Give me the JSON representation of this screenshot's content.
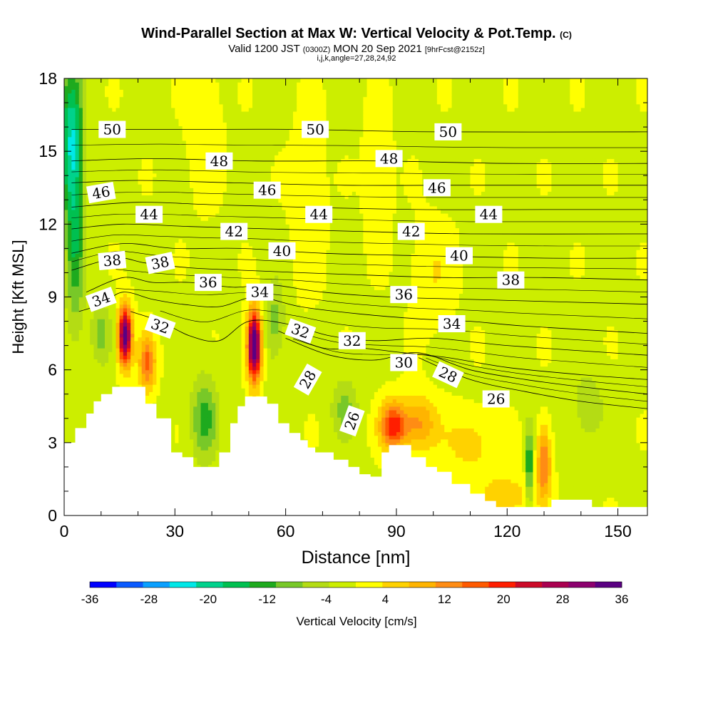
{
  "chart_data": {
    "type": "heatmap",
    "title_main": "Wind-Parallel Section at Max W: Vertical Velocity & Pot.Temp.",
    "title_copyright": "(C)",
    "subtitle_a": "Valid 1200 JST",
    "subtitle_b": "(0300Z)",
    "subtitle_c": "MON 20 Sep 2021",
    "subtitle_d": "[9hrFcst@2152z]",
    "subtitle_line2": "i,j,k,angle=27,28,24,92",
    "xlabel": "Distance [nm]",
    "ylabel": "Height [Kft MSL]",
    "xlim": [
      0,
      158
    ],
    "ylim": [
      0,
      18
    ],
    "x_ticks": [
      0,
      30,
      60,
      90,
      120,
      150
    ],
    "y_ticks": [
      0,
      3,
      6,
      9,
      12,
      15,
      18
    ],
    "colorbar": {
      "label": "Vertical Velocity [cm/s]",
      "ticks": [
        -36,
        -28,
        -20,
        -12,
        -4,
        4,
        12,
        20,
        28,
        36
      ],
      "colors": [
        "#0000ff",
        "#0a5aff",
        "#0aa0ff",
        "#00e8e8",
        "#00d28c",
        "#00c050",
        "#1eaa1e",
        "#78c828",
        "#b4dc14",
        "#ccee00",
        "#ffff00",
        "#ffd200",
        "#ffb400",
        "#ff8c14",
        "#ff5a00",
        "#ff1e00",
        "#cc0a28",
        "#aa0050",
        "#8c006e",
        "#5a0082"
      ]
    },
    "terrain": [
      [
        0,
        3
      ],
      [
        3,
        3
      ],
      [
        3,
        3.6
      ],
      [
        6,
        3.6
      ],
      [
        6,
        4.2
      ],
      [
        8,
        4.2
      ],
      [
        8,
        4.7
      ],
      [
        10,
        4.7
      ],
      [
        10,
        5.0
      ],
      [
        13,
        5.0
      ],
      [
        13,
        5.3
      ],
      [
        22,
        5.3
      ],
      [
        22,
        4.6
      ],
      [
        25,
        4.6
      ],
      [
        25,
        4.0
      ],
      [
        29,
        4.0
      ],
      [
        29,
        2.6
      ],
      [
        32,
        2.6
      ],
      [
        32,
        2.4
      ],
      [
        35,
        2.4
      ],
      [
        35,
        2.0
      ],
      [
        42,
        2.0
      ],
      [
        42,
        2.6
      ],
      [
        45,
        2.6
      ],
      [
        45,
        3.8
      ],
      [
        47,
        3.8
      ],
      [
        47,
        4.5
      ],
      [
        49,
        4.5
      ],
      [
        49,
        4.9
      ],
      [
        55,
        4.9
      ],
      [
        55,
        4.6
      ],
      [
        58,
        4.6
      ],
      [
        58,
        3.8
      ],
      [
        61,
        3.8
      ],
      [
        61,
        3.4
      ],
      [
        64,
        3.4
      ],
      [
        64,
        3.1
      ],
      [
        66,
        3.1
      ],
      [
        66,
        2.8
      ],
      [
        68,
        2.8
      ],
      [
        68,
        2.6
      ],
      [
        73,
        2.6
      ],
      [
        73,
        2.3
      ],
      [
        77,
        2.3
      ],
      [
        77,
        2.0
      ],
      [
        80,
        2.0
      ],
      [
        80,
        1.7
      ],
      [
        83,
        1.7
      ],
      [
        83,
        1.6
      ],
      [
        86,
        1.6
      ],
      [
        86,
        2.6
      ],
      [
        88,
        2.6
      ],
      [
        88,
        2.9
      ],
      [
        94,
        2.9
      ],
      [
        94,
        2.4
      ],
      [
        98,
        2.4
      ],
      [
        98,
        2.0
      ],
      [
        101,
        2.0
      ],
      [
        101,
        1.8
      ],
      [
        105,
        1.8
      ],
      [
        105,
        1.3
      ],
      [
        110,
        1.3
      ],
      [
        110,
        0.9
      ],
      [
        114,
        0.9
      ],
      [
        114,
        0.6
      ],
      [
        117,
        0.6
      ],
      [
        117,
        0.35
      ],
      [
        132,
        0.35
      ],
      [
        132,
        0.65
      ],
      [
        143,
        0.65
      ],
      [
        143,
        0.35
      ],
      [
        158,
        0.35
      ]
    ],
    "w_blobs": [
      {
        "x": 16.5,
        "y": 7.4,
        "sx": 1.3,
        "sy": 0.85,
        "w": 36
      },
      {
        "x": 22.5,
        "y": 6.3,
        "sx": 1.6,
        "sy": 0.8,
        "w": 16
      },
      {
        "x": 51.5,
        "y": 7.0,
        "sx": 1.3,
        "sy": 1.0,
        "w": 40
      },
      {
        "x": 89,
        "y": 3.7,
        "sx": 2.5,
        "sy": 0.7,
        "w": 20
      },
      {
        "x": 96,
        "y": 3.8,
        "sx": 3.5,
        "sy": 0.8,
        "w": 12
      },
      {
        "x": 130,
        "y": 2.2,
        "sx": 1.3,
        "sy": 1.0,
        "w": 16
      },
      {
        "x": 2,
        "y": 15.5,
        "sx": 2.2,
        "sy": 2.2,
        "w": -20
      },
      {
        "x": 3,
        "y": 11.0,
        "sx": 1.8,
        "sy": 2.5,
        "w": -12
      },
      {
        "x": 38,
        "y": 4.0,
        "sx": 2.5,
        "sy": 1.2,
        "w": -12
      },
      {
        "x": 126,
        "y": 2.0,
        "sx": 0.7,
        "sy": 1.2,
        "w": -16
      },
      {
        "x": 76,
        "y": 4.4,
        "sx": 2.5,
        "sy": 0.9,
        "w": -8
      },
      {
        "x": 120,
        "y": 0.8,
        "sx": 6,
        "sy": 0.8,
        "w": 6
      },
      {
        "x": 110,
        "y": 3.0,
        "sx": 5,
        "sy": 0.9,
        "w": 6
      },
      {
        "x": 66,
        "y": 13.0,
        "sx": 3,
        "sy": 2.5,
        "w": 4
      },
      {
        "x": 85,
        "y": 14.0,
        "sx": 2.5,
        "sy": 2.0,
        "w": 4
      },
      {
        "x": 38,
        "y": 16.0,
        "sx": 3,
        "sy": 2.0,
        "w": 4
      },
      {
        "x": 100,
        "y": 10.0,
        "sx": 4,
        "sy": 1.5,
        "w": 4
      },
      {
        "x": 10,
        "y": 7.5,
        "sx": 2,
        "sy": 0.9,
        "w": -8
      },
      {
        "x": 57,
        "y": 8.0,
        "sx": 2,
        "sy": 1.2,
        "w": -8
      },
      {
        "x": 142,
        "y": 4.5,
        "sx": 3,
        "sy": 1.0,
        "w": -6
      }
    ],
    "theta_contours": [
      {
        "label": "26",
        "pts": [
          [
            96,
            6.5
          ],
          [
            110,
            5.6
          ],
          [
            125,
            5.1
          ],
          [
            140,
            4.7
          ],
          [
            158,
            4.4
          ]
        ]
      },
      {
        "label": "28",
        "pts": [
          [
            60,
            7.3
          ],
          [
            72,
            6.6
          ],
          [
            84,
            6.4
          ],
          [
            96,
            6.7
          ],
          [
            110,
            6.0
          ],
          [
            125,
            5.6
          ],
          [
            140,
            5.3
          ],
          [
            158,
            5.0
          ]
        ]
      },
      {
        "label": "30",
        "pts": [
          [
            58,
            7.6
          ],
          [
            70,
            6.9
          ],
          [
            80,
            6.9
          ],
          [
            92,
            6.7
          ],
          [
            104,
            6.5
          ],
          [
            120,
            6.1
          ],
          [
            140,
            5.8
          ],
          [
            158,
            5.6
          ]
        ]
      },
      {
        "label": "32",
        "pts": [
          [
            18,
            8.4
          ],
          [
            26,
            8.0
          ],
          [
            34,
            7.4
          ],
          [
            42,
            7.2
          ],
          [
            50,
            8.0
          ],
          [
            60,
            7.9
          ],
          [
            72,
            7.4
          ],
          [
            84,
            7.2
          ],
          [
            100,
            7.3
          ],
          [
            120,
            7.0
          ],
          [
            158,
            6.6
          ]
        ]
      },
      {
        "label": "34",
        "pts": [
          [
            4,
            8.4
          ],
          [
            10,
            8.7
          ],
          [
            16,
            9.2
          ],
          [
            24,
            8.9
          ],
          [
            32,
            8.7
          ],
          [
            42,
            8.6
          ],
          [
            52,
            9.0
          ],
          [
            64,
            8.6
          ],
          [
            80,
            8.3
          ],
          [
            96,
            8.1
          ],
          [
            110,
            8.0
          ],
          [
            125,
            7.8
          ],
          [
            158,
            7.5
          ]
        ]
      },
      {
        "label": "36",
        "pts": [
          [
            6,
            9.2
          ],
          [
            16,
            9.8
          ],
          [
            24,
            9.6
          ],
          [
            34,
            9.6
          ],
          [
            46,
            9.4
          ],
          [
            56,
            9.5
          ],
          [
            70,
            9.2
          ],
          [
            88,
            9.0
          ],
          [
            110,
            8.9
          ],
          [
            158,
            8.7
          ]
        ]
      },
      {
        "label": "38",
        "pts": [
          [
            2,
            10.1
          ],
          [
            14,
            10.6
          ],
          [
            22,
            10.4
          ],
          [
            34,
            10.2
          ],
          [
            48,
            10.1
          ],
          [
            64,
            10.0
          ],
          [
            82,
            9.9
          ],
          [
            104,
            9.8
          ],
          [
            130,
            9.8
          ],
          [
            158,
            9.7
          ]
        ]
      },
      {
        "label": "40",
        "pts": [
          [
            2,
            10.8
          ],
          [
            16,
            11.2
          ],
          [
            30,
            11.0
          ],
          [
            48,
            11.0
          ],
          [
            70,
            10.8
          ],
          [
            96,
            10.7
          ],
          [
            130,
            10.6
          ],
          [
            158,
            10.6
          ]
        ]
      },
      {
        "label": "42",
        "pts": [
          [
            2,
            11.8
          ],
          [
            16,
            12.0
          ],
          [
            34,
            11.9
          ],
          [
            56,
            11.8
          ],
          [
            80,
            11.7
          ],
          [
            110,
            11.6
          ],
          [
            158,
            11.6
          ]
        ]
      },
      {
        "label": "44",
        "pts": [
          [
            2,
            12.7
          ],
          [
            20,
            12.9
          ],
          [
            40,
            12.8
          ],
          [
            64,
            12.7
          ],
          [
            96,
            12.6
          ],
          [
            130,
            12.6
          ],
          [
            158,
            12.6
          ]
        ]
      },
      {
        "label": "46",
        "pts": [
          [
            2,
            13.7
          ],
          [
            20,
            13.8
          ],
          [
            46,
            13.7
          ],
          [
            76,
            13.6
          ],
          [
            110,
            13.6
          ],
          [
            158,
            13.6
          ]
        ]
      },
      {
        "label": "48",
        "pts": [
          [
            2,
            14.6
          ],
          [
            24,
            14.7
          ],
          [
            52,
            14.6
          ],
          [
            86,
            14.6
          ],
          [
            120,
            14.5
          ],
          [
            158,
            14.5
          ]
        ]
      },
      {
        "label": "50",
        "pts": [
          [
            2,
            15.9
          ],
          [
            30,
            15.9
          ],
          [
            64,
            15.9
          ],
          [
            100,
            15.8
          ],
          [
            158,
            15.8
          ]
        ]
      }
    ],
    "contour_labels": [
      {
        "text": "50",
        "x": 13,
        "y": 15.9,
        "rot": 0
      },
      {
        "text": "50",
        "x": 68,
        "y": 15.9,
        "rot": 0
      },
      {
        "text": "50",
        "x": 104,
        "y": 15.8,
        "rot": 0
      },
      {
        "text": "48",
        "x": 42,
        "y": 14.6,
        "rot": 0
      },
      {
        "text": "48",
        "x": 88,
        "y": 14.7,
        "rot": 0
      },
      {
        "text": "46",
        "x": 10,
        "y": 13.3,
        "rot": -10
      },
      {
        "text": "46",
        "x": 55,
        "y": 13.4,
        "rot": 0
      },
      {
        "text": "46",
        "x": 101,
        "y": 13.5,
        "rot": 0
      },
      {
        "text": "44",
        "x": 23,
        "y": 12.4,
        "rot": 0
      },
      {
        "text": "44",
        "x": 69,
        "y": 12.4,
        "rot": 0
      },
      {
        "text": "44",
        "x": 115,
        "y": 12.4,
        "rot": 0
      },
      {
        "text": "42",
        "x": 46,
        "y": 11.7,
        "rot": 0
      },
      {
        "text": "42",
        "x": 94,
        "y": 11.7,
        "rot": 0
      },
      {
        "text": "40",
        "x": 59,
        "y": 10.9,
        "rot": 0
      },
      {
        "text": "40",
        "x": 107,
        "y": 10.7,
        "rot": 0
      },
      {
        "text": "38",
        "x": 13,
        "y": 10.5,
        "rot": -5
      },
      {
        "text": "38",
        "x": 26,
        "y": 10.4,
        "rot": -12
      },
      {
        "text": "38",
        "x": 121,
        "y": 9.7,
        "rot": 0
      },
      {
        "text": "36",
        "x": 39,
        "y": 9.6,
        "rot": 0
      },
      {
        "text": "36",
        "x": 92,
        "y": 9.1,
        "rot": 0
      },
      {
        "text": "34",
        "x": 10,
        "y": 8.9,
        "rot": -20
      },
      {
        "text": "34",
        "x": 53,
        "y": 9.2,
        "rot": 0
      },
      {
        "text": "34",
        "x": 105,
        "y": 7.9,
        "rot": 0
      },
      {
        "text": "32",
        "x": 26,
        "y": 7.8,
        "rot": 20
      },
      {
        "text": "32",
        "x": 64,
        "y": 7.6,
        "rot": 20
      },
      {
        "text": "32",
        "x": 78,
        "y": 7.2,
        "rot": 0
      },
      {
        "text": "30",
        "x": 92,
        "y": 6.3,
        "rot": 0
      },
      {
        "text": "28",
        "x": 66,
        "y": 5.6,
        "rot": -60
      },
      {
        "text": "28",
        "x": 104,
        "y": 5.8,
        "rot": 25
      },
      {
        "text": "26",
        "x": 78,
        "y": 3.9,
        "rot": -70
      },
      {
        "text": "26",
        "x": 117,
        "y": 4.8,
        "rot": 0
      }
    ]
  }
}
